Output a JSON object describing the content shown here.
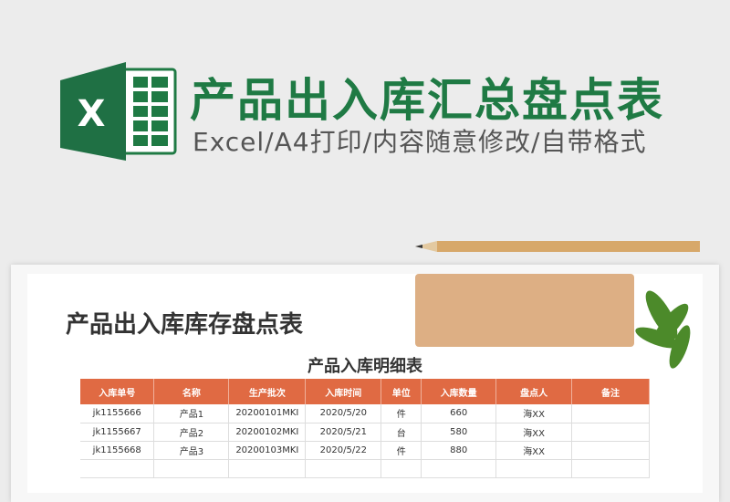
{
  "banner": {
    "title": "产品出入库汇总盘点表",
    "subtitle": "Excel/A4打印/内容随意修改/自带格式",
    "logo_letter": "X",
    "brand_color": "#1f7a44"
  },
  "sheet": {
    "title": "产品出入库库存盘点表",
    "table_title": "产品入库明细表",
    "header_color": "#e06a43",
    "columns": [
      "入库单号",
      "名称",
      "生产批次",
      "入库时间",
      "单位",
      "入库数量",
      "盘点人",
      "备注"
    ],
    "rows": [
      [
        "jk1155666",
        "产品1",
        "20200101MKI",
        "2020/5/20",
        "件",
        "660",
        "海XX",
        ""
      ],
      [
        "jk1155667",
        "产品2",
        "20200102MKI",
        "2020/5/21",
        "台",
        "580",
        "海XX",
        ""
      ],
      [
        "jk1155668",
        "产品3",
        "20200103MKI",
        "2020/5/22",
        "件",
        "880",
        "海XX",
        ""
      ],
      [
        "",
        "",
        "",
        "",
        "",
        "",
        "",
        ""
      ]
    ]
  }
}
